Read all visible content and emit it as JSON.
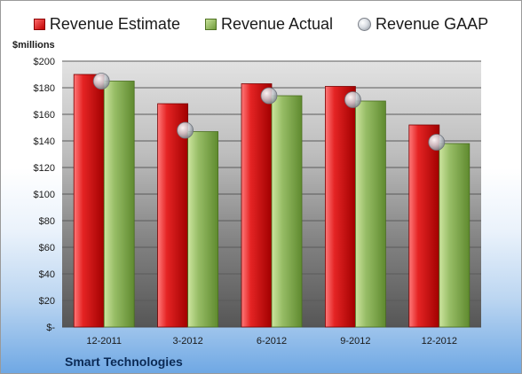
{
  "legend": {
    "estimate": "Revenue Estimate",
    "actual": "Revenue Actual",
    "gaap": "Revenue GAAP"
  },
  "units_label": "$millions",
  "company": "Smart Technologies",
  "colors": {
    "estimate": "#d01f1f",
    "actual": "#8fb560",
    "gaap": "#c8ccd2"
  },
  "chart_data": {
    "type": "bar",
    "categories": [
      "12-2011",
      "3-2012",
      "6-2012",
      "9-2012",
      "12-2012"
    ],
    "series": [
      {
        "name": "Revenue Estimate",
        "values": [
          190,
          168,
          183,
          181,
          152
        ]
      },
      {
        "name": "Revenue Actual",
        "values": [
          185,
          147,
          174,
          170,
          138
        ]
      },
      {
        "name": "Revenue GAAP",
        "type": "scatter",
        "values": [
          185,
          148,
          174,
          171,
          139
        ]
      }
    ],
    "ylabel": "$millions",
    "ylim": [
      0,
      200
    ],
    "y_ticks": [
      0,
      20,
      40,
      60,
      80,
      100,
      120,
      140,
      160,
      180,
      200
    ],
    "y_tick_labels": [
      "$-",
      "$20",
      "$40",
      "$60",
      "$80",
      "$100",
      "$120",
      "$140",
      "$160",
      "$180",
      "$200"
    ],
    "grid": true,
    "legend_position": "top"
  }
}
